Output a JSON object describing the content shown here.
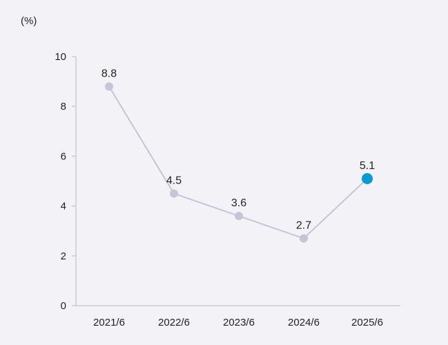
{
  "unit_label": "(%)",
  "chart_data": {
    "type": "line",
    "title": "",
    "xlabel": "",
    "ylabel": "",
    "categories": [
      "2021/6",
      "2022/6",
      "2023/6",
      "2024/6",
      "2025/6"
    ],
    "series": [
      {
        "values": [
          8.8,
          4.5,
          3.6,
          2.7,
          5.1
        ],
        "data_labels": [
          "8.8",
          "4.5",
          "3.6",
          "2.7",
          "5.1"
        ]
      }
    ],
    "ylim": [
      0,
      10
    ],
    "yticks": [
      0,
      2,
      4,
      6,
      8,
      10
    ],
    "ytick_labels": [
      "0",
      "2",
      "4",
      "6",
      "8",
      "10"
    ],
    "highlight_index": 4,
    "grid": false,
    "legend": "none",
    "colors": {
      "background": "#f2f2f7",
      "line": "#c4c6d8",
      "marker": "#c4c6d8",
      "highlight_marker": "#0a99d1",
      "axis": "#c9cbd6",
      "text": "#222222"
    }
  }
}
